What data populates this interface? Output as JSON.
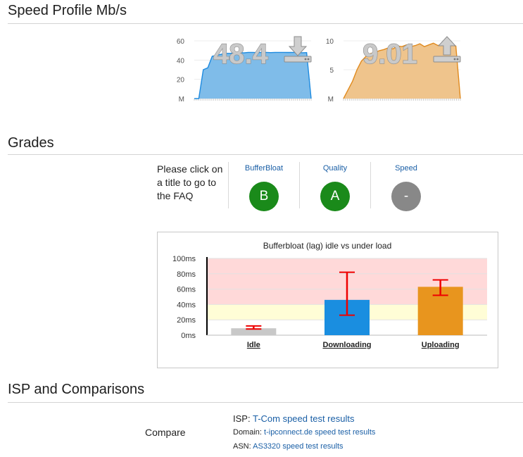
{
  "speed_profile": {
    "title": "Speed Profile Mb/s",
    "download": {
      "value": "48.4",
      "icon": "download-icon",
      "color": "#7fbce9",
      "line_color": "#1e8be0",
      "y_ticks": [
        "60",
        "40",
        "20",
        "M"
      ],
      "y_max": 60,
      "samples": [
        0,
        0,
        30,
        32,
        44,
        45,
        46,
        47,
        47,
        47.5,
        48,
        47.5,
        48,
        48,
        47.8,
        48,
        48,
        47.8,
        48,
        48,
        48,
        47.9,
        48,
        48,
        47.6,
        47.8,
        0
      ]
    },
    "upload": {
      "value": "9.01",
      "icon": "upload-icon",
      "color": "#efc48c",
      "line_color": "#e08a1e",
      "y_ticks": [
        "10",
        "5",
        "M"
      ],
      "y_max": 10,
      "samples": [
        0,
        1.5,
        3,
        5,
        6.5,
        7.3,
        7.8,
        8,
        8.3,
        8.5,
        8.8,
        8.6,
        9.1,
        9.0,
        9.3,
        9.0,
        9.2,
        9.5,
        9.0,
        9.3,
        9.6,
        9.2,
        9.4,
        9.7,
        9.3,
        9.1,
        0
      ]
    }
  },
  "grades": {
    "title": "Grades",
    "faq_text": "Please click on a title to go to the FAQ",
    "items": [
      {
        "title": "BufferBloat",
        "grade": "B",
        "color": "#1a8a1a"
      },
      {
        "title": "Quality",
        "grade": "A",
        "color": "#1a8a1a"
      },
      {
        "title": "Speed",
        "grade": "-",
        "color": "#888888"
      }
    ]
  },
  "chart_data": {
    "type": "bar",
    "title": "Bufferbloat (lag) idle vs under load",
    "categories": [
      "Idle",
      "Downloading",
      "Uploading"
    ],
    "values": [
      9,
      46,
      63
    ],
    "error_low": [
      8,
      26,
      52
    ],
    "error_high": [
      12,
      82,
      72
    ],
    "colors": [
      "#c8c8c8",
      "#1a8ee0",
      "#e8951e"
    ],
    "y_ticks": [
      "100ms",
      "80ms",
      "60ms",
      "40ms",
      "20ms",
      "0ms"
    ],
    "ylim": [
      0,
      100
    ],
    "bands": [
      {
        "from": 40,
        "to": 100,
        "color": "#ffd9d9"
      },
      {
        "from": 20,
        "to": 40,
        "color": "#fffdd6"
      }
    ],
    "xlabel": "",
    "ylabel": ""
  },
  "isp": {
    "title": "ISP and Comparisons",
    "compare_label": "Compare",
    "rows": [
      {
        "label": "ISP:",
        "link": "T-Com speed test results"
      },
      {
        "label": "Domain:",
        "link": "t-ipconnect.de speed test results"
      },
      {
        "label": "ASN:",
        "link": "AS3320 speed test results"
      }
    ]
  }
}
